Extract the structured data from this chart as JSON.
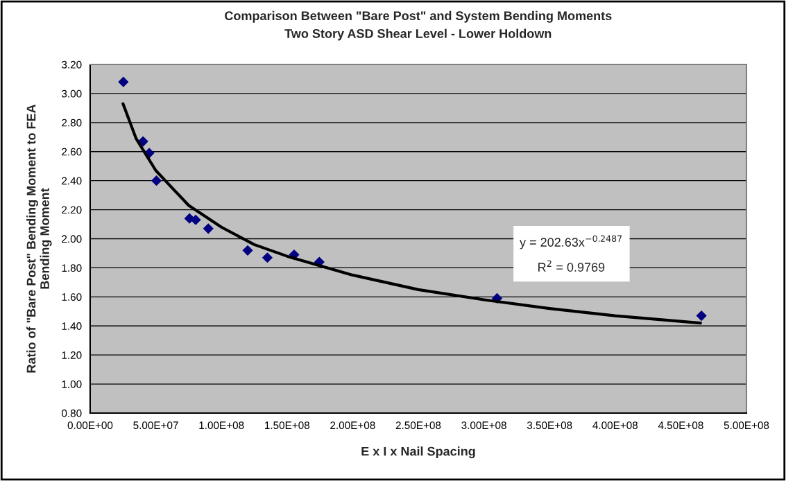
{
  "chart_data": {
    "type": "scatter",
    "title": "Comparison Between \"Bare Post\" and System Bending Moments",
    "subtitle": "Two Story ASD Shear Level - Lower Holdown",
    "xlabel": "E x I x Nail Spacing",
    "ylabel": "Ratio of \"Bare Post\" Bending Moment to FEA\nBending Moment",
    "annotations": [
      "y = 202.63x$^{−0.2487}$",
      "R$^{2}$ = 0.9769"
    ],
    "series": [
      {
        "color": "#000080",
        "marker": "diamond",
        "x": [
          25300000,
          40300000,
          45000000,
          50500000,
          75700000,
          80400000,
          90000000,
          120000000,
          135000000,
          155400000,
          174600000,
          310000000,
          465700000
        ],
        "values": [
          3.08,
          2.67,
          2.59,
          2.4,
          2.14,
          2.13,
          2.07,
          1.92,
          1.87,
          1.89,
          1.84,
          1.59,
          1.47
        ]
      },
      {
        "type": "line",
        "color": "#000000",
        "marker": "none",
        "line_style": "solid",
        "x": [
          25000000,
          35000000,
          50000000,
          75000000,
          100000000,
          125000000,
          150000000,
          200000000,
          250000000,
          300000000,
          350000000,
          400000000,
          465000000
        ],
        "values": [
          2.93,
          2.69,
          2.47,
          2.23,
          2.08,
          1.96,
          1.88,
          1.75,
          1.65,
          1.58,
          1.52,
          1.47,
          1.42
        ]
      }
    ],
    "xlim": [
      0,
      500000000
    ],
    "xticks": [
      {
        "value": 0,
        "label": "0.00E+00"
      },
      {
        "value": 50000000,
        "label": "5.00E+07"
      },
      {
        "value": 100000000,
        "label": "1.00E+08"
      },
      {
        "value": 150000000,
        "label": "1.50E+08"
      },
      {
        "value": 200000000,
        "label": "2.00E+08"
      },
      {
        "value": 250000000,
        "label": "2.50E+08"
      },
      {
        "value": 300000000,
        "label": "3.00E+08"
      },
      {
        "value": 350000000,
        "label": "3.50E+08"
      },
      {
        "value": 400000000,
        "label": "4.00E+08"
      },
      {
        "value": 450000000,
        "label": "4.50E+08"
      },
      {
        "value": 500000000,
        "label": "5.00E+08"
      }
    ],
    "ylim": [
      0.8,
      3.2
    ],
    "yticks": [
      {
        "value": 0.8,
        "label": "0.80"
      },
      {
        "value": 1.0,
        "label": "1.00"
      },
      {
        "value": 1.2,
        "label": "1.20"
      },
      {
        "value": 1.4,
        "label": "1.40"
      },
      {
        "value": 1.6,
        "label": "1.60"
      },
      {
        "value": 1.8,
        "label": "1.80"
      },
      {
        "value": 2.0,
        "label": "2.00"
      },
      {
        "value": 2.2,
        "label": "2.20"
      },
      {
        "value": 2.4,
        "label": "2.40"
      },
      {
        "value": 2.6,
        "label": "2.60"
      },
      {
        "value": 2.8,
        "label": "2.80"
      },
      {
        "value": 3.0,
        "label": "3.00"
      },
      {
        "value": 3.2,
        "label": "3.20"
      }
    ],
    "grid": "y",
    "legend": false
  }
}
